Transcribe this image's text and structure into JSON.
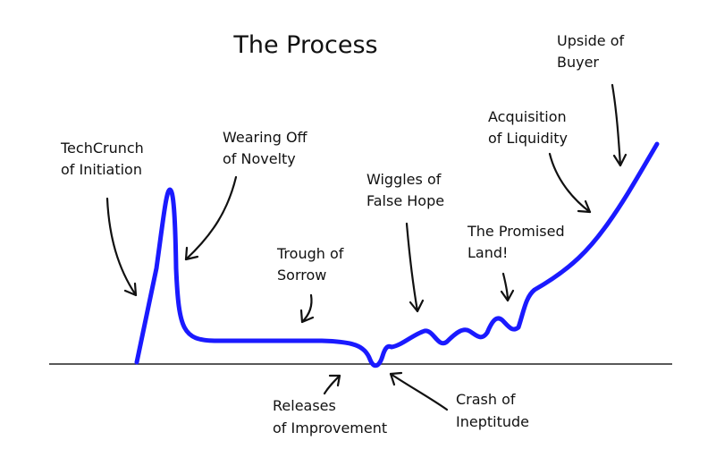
{
  "title": "The Process",
  "colors": {
    "curve": "#1a1aff",
    "text": "#111111",
    "baseline": "#222222",
    "background": "#ffffff"
  },
  "labels": {
    "techcrunch": [
      "TechCrunch",
      "of Initiation"
    ],
    "wearing_off": [
      "Wearing Off",
      "of Novelty"
    ],
    "trough": [
      "Trough of",
      "Sorrow"
    ],
    "wiggles": [
      "Wiggles of",
      "False Hope"
    ],
    "promised_land": [
      "The Promised",
      "Land!"
    ],
    "acquisition": [
      "Acquisition",
      "of Liquidity"
    ],
    "upside": [
      "Upside of",
      "Buyer"
    ],
    "releases": [
      "Releases",
      "of Improvement"
    ],
    "crash": [
      "Crash of",
      "Ineptitude"
    ]
  }
}
